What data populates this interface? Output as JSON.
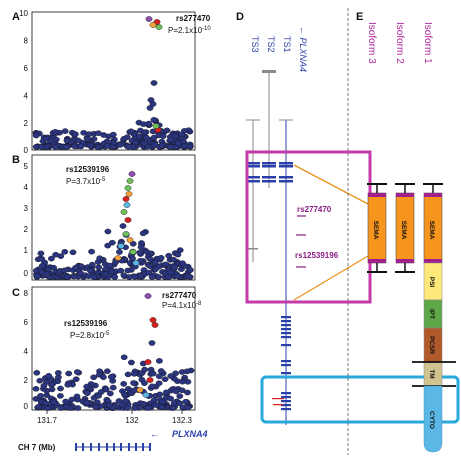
{
  "panels": {
    "a": "A",
    "b": "B",
    "c": "C",
    "d": "D",
    "e": "E"
  },
  "manhattan": {
    "A": {
      "yticks": [
        "10",
        "8",
        "6",
        "4",
        "2",
        "0"
      ],
      "lead_snp": "rs277470",
      "pval_prefix": "P=2.1x10",
      "pval_exp": "-10"
    },
    "B": {
      "yticks": [
        "5",
        "4",
        "3",
        "2",
        "1",
        "0"
      ],
      "lead_snp": "rs12539196",
      "pval_prefix": "P=3.7x10",
      "pval_exp": "-5"
    },
    "C": {
      "yticks": [
        "8",
        "6",
        "4",
        "2",
        "0"
      ],
      "snp1": "rs277470",
      "snp1_pval_prefix": "P=4.1x10",
      "snp1_pval_exp": "-8",
      "snp2": "rs12539196",
      "snp2_pval_prefix": "P=2.8x10",
      "snp2_pval_exp": "-5"
    },
    "xticks": [
      "131.7",
      "132",
      "132.3"
    ],
    "chrom_label": "CH 7 (Mb)",
    "gene_label": "PLXNA4"
  },
  "transcripts": {
    "labels": [
      "TS3",
      "TS2",
      "TS1"
    ],
    "gene": "PLXNA4",
    "snp_upper": "rs277470",
    "snp_lower": "rs12539196"
  },
  "isoforms": {
    "labels": [
      "Isoform 3",
      "Isoform 2",
      "Isoform 1"
    ],
    "domains": [
      "SEMA",
      "PSI",
      "IPT",
      "PCSR",
      "TM",
      "CYTO"
    ]
  },
  "colors": {
    "dot": "#2b3580",
    "gene_blue": "#2b3fa8",
    "magenta": "#c43aa8",
    "cyan": "#29a8dc",
    "orange": "#e8931c",
    "sema": "#f7941d",
    "psi": "#ffe87a",
    "ipt": "#5fa84a",
    "pcsr": "#b05a2c",
    "tm": "#d0c38f",
    "cyto": "#5bb8e6"
  }
}
